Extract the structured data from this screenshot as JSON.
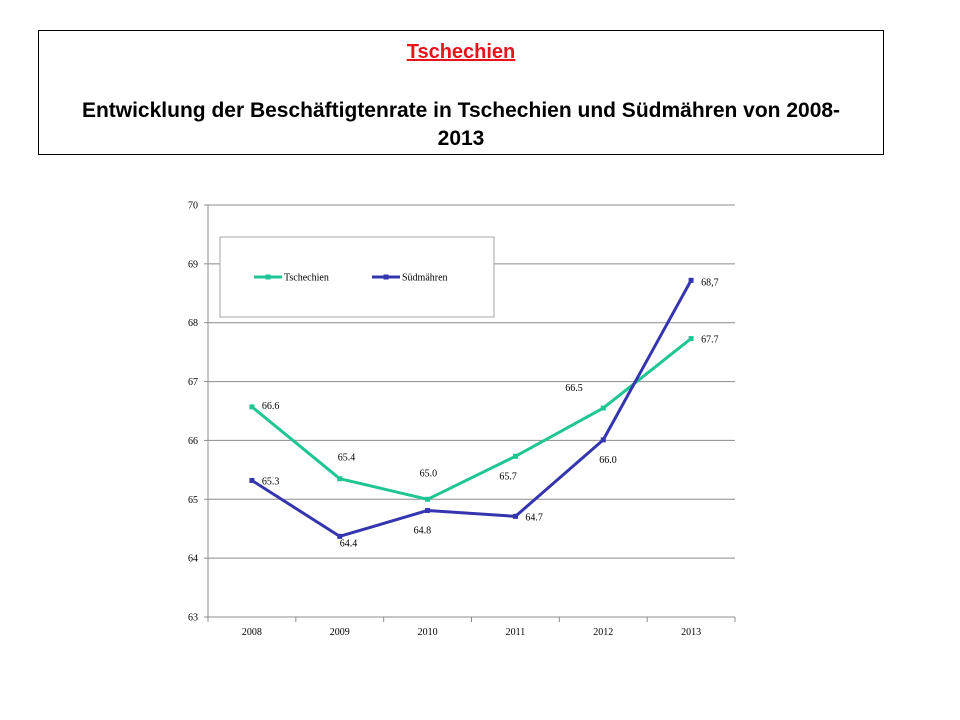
{
  "header": {
    "country": "Tschechien",
    "title": "Entwicklung der Beschäftigtenrate in Tschechien und Südmähren von 2008-2013"
  },
  "chart_data": {
    "type": "line",
    "categories": [
      "2008",
      "2009",
      "2010",
      "2011",
      "2012",
      "2013"
    ],
    "ylim": [
      63,
      70
    ],
    "yticks": [
      "63",
      "64",
      "65",
      "66",
      "67",
      "68",
      "69",
      "70"
    ],
    "grid": true,
    "legend": "top-left",
    "series": [
      {
        "name": "Tschechien",
        "color": "#1fc593",
        "values": [
          66.57,
          65.35,
          65.0,
          65.73,
          66.55,
          67.73
        ],
        "labels": [
          "66.6",
          "65.4",
          "65.0",
          "65.7",
          "66.5",
          "67.7"
        ]
      },
      {
        "name": "Südmähren",
        "color": "#3535b0",
        "values": [
          65.32,
          64.37,
          64.81,
          64.71,
          66.01,
          68.72
        ],
        "labels": [
          "65.3",
          "64.4",
          "64.8",
          "64.7",
          "66.0",
          "68,7"
        ]
      }
    ]
  }
}
